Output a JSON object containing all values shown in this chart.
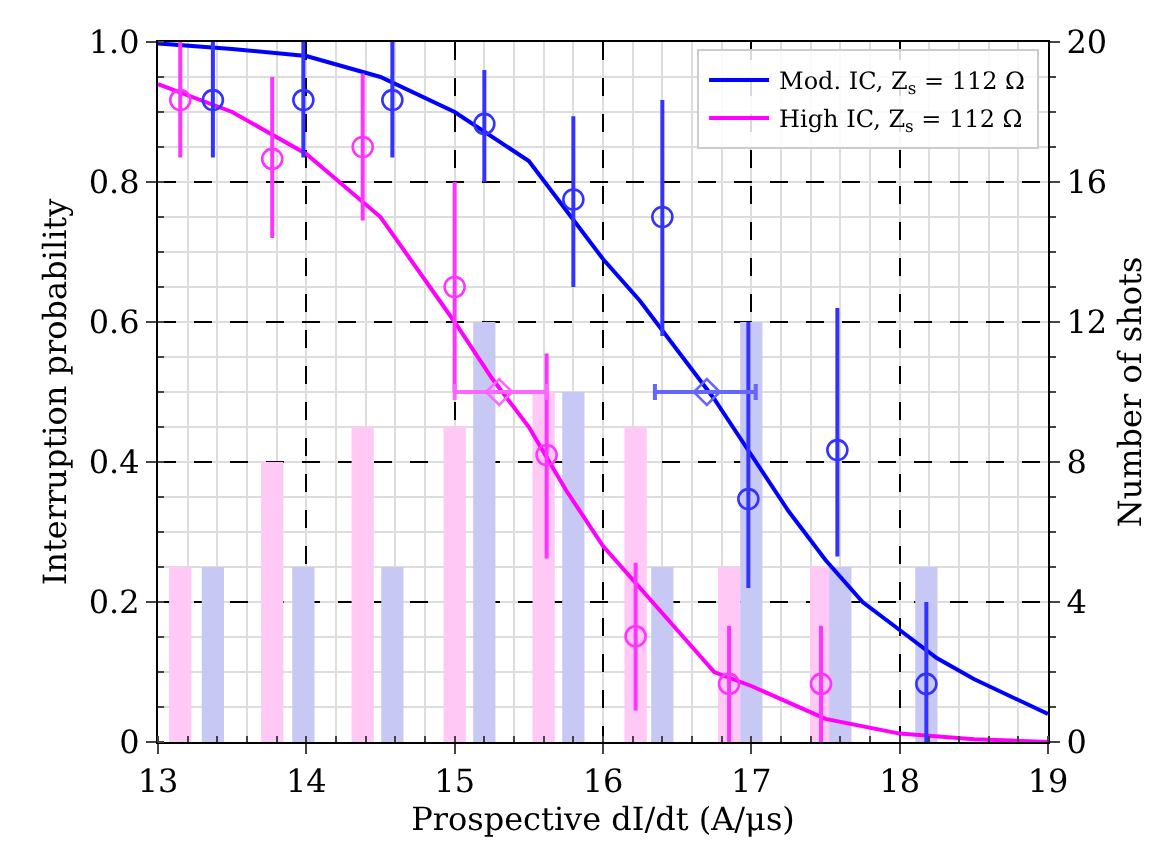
{
  "chart_data": {
    "type": "scatter",
    "xlabel": "Prospective dI/dt (A/μs)",
    "ylabel": "Interruption probability",
    "y2label": "Number of shots",
    "xlim": [
      13,
      19
    ],
    "xticks": [
      13,
      14,
      15,
      16,
      17,
      18,
      19
    ],
    "ylim": [
      0,
      1
    ],
    "yticks": [
      0,
      0.2,
      0.4,
      0.6,
      0.8,
      {
        "value": 1,
        "label": "1.0"
      }
    ],
    "y2lim": [
      0,
      20
    ],
    "y2ticks": [
      0,
      4,
      8,
      12,
      16,
      20
    ],
    "grid": true,
    "legend": "top right",
    "series": [
      {
        "type": "bar",
        "axis": "y2",
        "color": "#ffc8f5",
        "x": [
          13.15,
          13.77,
          14.38,
          15.0,
          15.6,
          16.22,
          16.85,
          17.47
        ],
        "values": [
          5,
          8,
          9,
          9,
          10,
          9,
          5,
          5
        ]
      },
      {
        "type": "bar",
        "axis": "y2",
        "color": "#c8c8f5",
        "x": [
          13.37,
          13.98,
          14.58,
          15.2,
          15.8,
          16.4,
          17.0,
          17.6,
          18.18
        ],
        "values": [
          5,
          5,
          5,
          12,
          10,
          5,
          12,
          5,
          5
        ]
      },
      {
        "type": "line",
        "name": "Mod. IC, Z$_{s}$ = 112 Ω",
        "color": "#0000ff",
        "marker": "none",
        "line_style": "solid",
        "x": [
          13,
          13.5,
          14,
          14.5,
          15,
          15.5,
          15.75,
          16,
          16.25,
          16.5,
          16.75,
          17,
          17.25,
          17.5,
          17.75,
          18,
          18.25,
          18.5,
          19
        ],
        "values": [
          0.998,
          0.99,
          0.98,
          0.95,
          0.9,
          0.83,
          0.76,
          0.69,
          0.63,
          0.56,
          0.49,
          0.41,
          0.33,
          0.26,
          0.2,
          0.16,
          0.12,
          0.09,
          0.04
        ]
      },
      {
        "type": "line",
        "name": "High IC, Z$_{s}$ = 112 Ω",
        "color": "#ff00ff",
        "marker": "none",
        "line_style": "solid",
        "x": [
          13,
          13.5,
          14,
          14.5,
          15,
          15.25,
          15.5,
          15.75,
          16,
          16.25,
          16.5,
          16.75,
          17,
          17.5,
          18,
          18.5,
          19
        ],
        "values": [
          0.94,
          0.9,
          0.84,
          0.75,
          0.6,
          0.52,
          0.45,
          0.36,
          0.28,
          0.22,
          0.16,
          0.1,
          0.08,
          0.033,
          0.012,
          0.004,
          0.0
        ]
      },
      {
        "color": "#3333ff",
        "marker": "circle",
        "x": [
          13.37,
          13.98,
          14.58,
          15.2,
          15.8,
          16.4,
          16.98,
          17.58,
          18.18
        ],
        "values": [
          0.917,
          0.917,
          0.917,
          0.883,
          0.775,
          0.75,
          0.347,
          0.417,
          0.083
        ],
        "errors": [
          [
            0.835,
            1.0
          ],
          [
            0.835,
            1.0
          ],
          [
            0.835,
            1.0
          ],
          [
            0.8,
            0.96
          ],
          [
            0.65,
            0.894
          ],
          [
            0.58,
            0.917
          ],
          [
            0.22,
            0.6
          ],
          [
            0.265,
            0.62
          ],
          [
            0.0,
            0.2
          ]
        ]
      },
      {
        "color": "#ff33ff",
        "marker": "circle",
        "x": [
          13.15,
          13.77,
          14.38,
          15.0,
          15.62,
          16.22,
          16.85,
          17.47
        ],
        "values": [
          0.917,
          0.833,
          0.85,
          0.65,
          0.41,
          0.151,
          0.083,
          0.083
        ],
        "errors": [
          [
            0.835,
            1.0
          ],
          [
            0.72,
            0.95
          ],
          [
            0.745,
            0.955
          ],
          [
            0.5,
            0.8
          ],
          [
            0.262,
            0.555
          ],
          [
            0.045,
            0.256
          ],
          [
            0.0,
            0.166
          ],
          [
            0.0,
            0.166
          ]
        ]
      },
      {
        "color": "#6666ff",
        "marker": "diamond",
        "x": [
          16.7
        ],
        "values": [
          0.5
        ],
        "xerrors": [
          [
            16.35,
            17.03
          ]
        ]
      },
      {
        "color": "#ff66ff",
        "marker": "diamond",
        "x": [
          15.3
        ],
        "values": [
          0.5
        ],
        "xerrors": [
          [
            15.0,
            15.62
          ]
        ]
      }
    ]
  }
}
